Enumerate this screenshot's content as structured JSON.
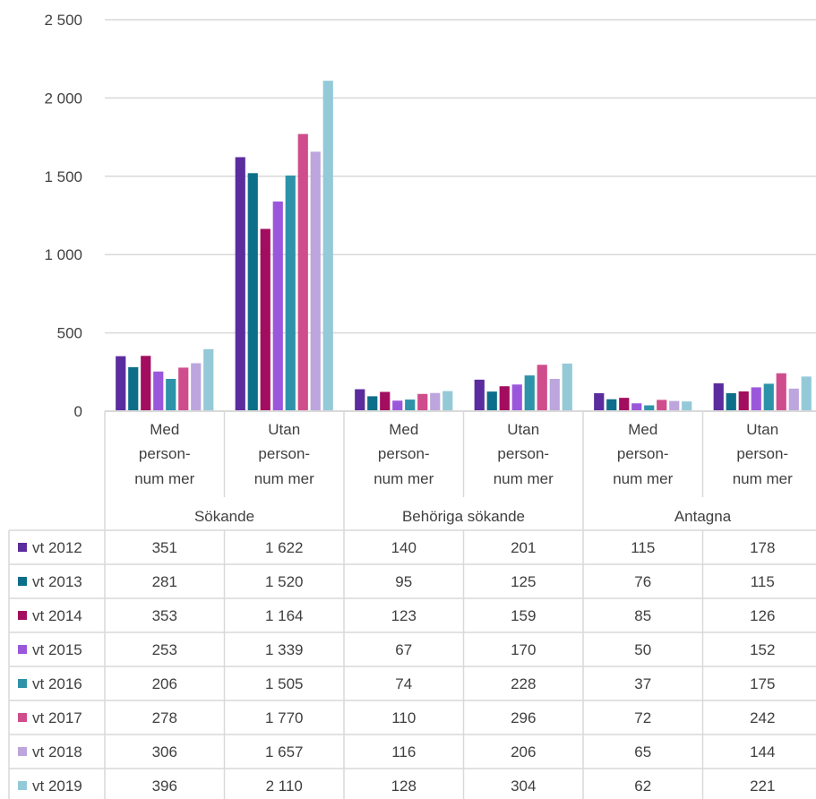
{
  "chart_data": {
    "type": "bar",
    "ylim": [
      0,
      2500
    ],
    "yticks": [
      "0",
      "500",
      "1 000",
      "1 500",
      "2 000",
      "2 500"
    ],
    "grid": true,
    "legend": "data-table-left",
    "groups": [
      {
        "label": "Sökande",
        "categories": [
          [
            "Med",
            "person-",
            "num mer"
          ],
          [
            "Utan",
            "person-",
            "num mer"
          ]
        ]
      },
      {
        "label": "Behöriga sökande",
        "categories": [
          [
            "Med",
            "person-",
            "num mer"
          ],
          [
            "Utan",
            "person-",
            "num mer"
          ]
        ]
      },
      {
        "label": "Antagna",
        "categories": [
          [
            "Med",
            "person-",
            "num mer"
          ],
          [
            "Utan",
            "person-",
            "num mer"
          ]
        ]
      }
    ],
    "series": [
      {
        "name": "vt 2012",
        "color": "#5b2c9e",
        "values": [
          351,
          1622,
          140,
          201,
          115,
          178
        ],
        "labels": [
          "351",
          "1 622",
          "140",
          "201",
          "115",
          "178"
        ]
      },
      {
        "name": "vt 2013",
        "color": "#0d6e8a",
        "values": [
          281,
          1520,
          95,
          125,
          76,
          115
        ],
        "labels": [
          "281",
          "1 520",
          "95",
          "125",
          "76",
          "115"
        ]
      },
      {
        "name": "vt 2014",
        "color": "#a30d5f",
        "values": [
          353,
          1164,
          123,
          159,
          85,
          126
        ],
        "labels": [
          "353",
          "1 164",
          "123",
          "159",
          "85",
          "126"
        ]
      },
      {
        "name": "vt 2015",
        "color": "#9b57dc",
        "values": [
          253,
          1339,
          67,
          170,
          50,
          152
        ],
        "labels": [
          "253",
          "1 339",
          "67",
          "170",
          "50",
          "152"
        ]
      },
      {
        "name": "vt 2016",
        "color": "#2e93a9",
        "values": [
          206,
          1505,
          74,
          228,
          37,
          175
        ],
        "labels": [
          "206",
          "1 505",
          "74",
          "228",
          "37",
          "175"
        ]
      },
      {
        "name": "vt 2017",
        "color": "#cf4d8c",
        "values": [
          278,
          1770,
          110,
          296,
          72,
          242
        ],
        "labels": [
          "278",
          "1 770",
          "110",
          "296",
          "72",
          "242"
        ]
      },
      {
        "name": "vt 2018",
        "color": "#bca6dd",
        "values": [
          306,
          1657,
          116,
          206,
          65,
          144
        ],
        "labels": [
          "306",
          "1 657",
          "116",
          "206",
          "65",
          "144"
        ]
      },
      {
        "name": "vt 2019",
        "color": "#94c9d8",
        "values": [
          396,
          2110,
          128,
          304,
          62,
          221
        ],
        "labels": [
          "396",
          "2 110",
          "128",
          "304",
          "62",
          "221"
        ]
      }
    ]
  }
}
